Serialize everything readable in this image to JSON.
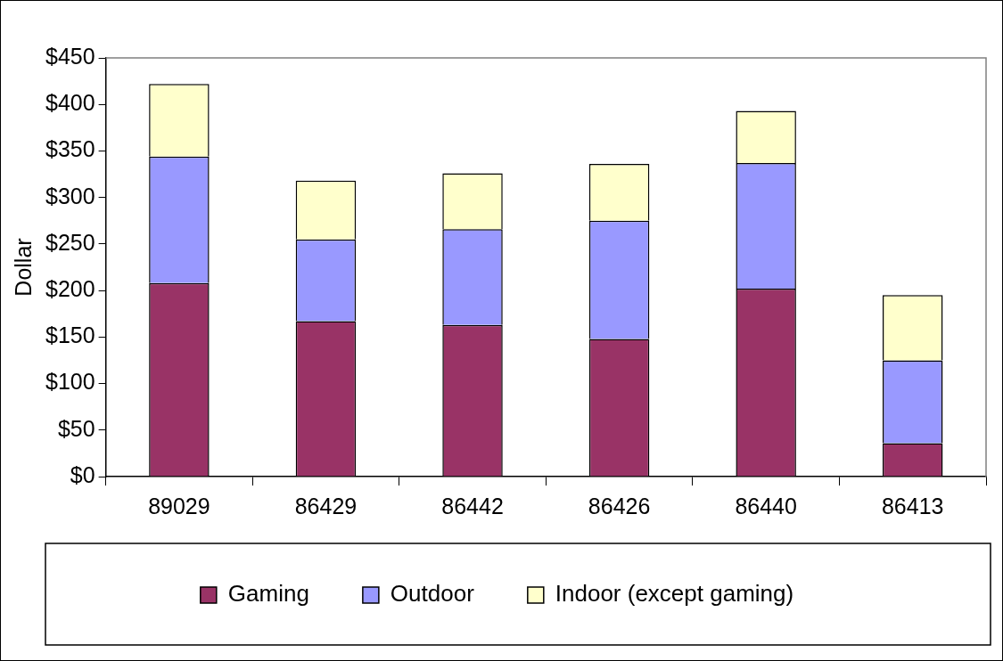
{
  "chart_data": {
    "type": "bar",
    "stacked": true,
    "ylabel": "Dollar",
    "categories": [
      "89029",
      "86429",
      "86442",
      "86426",
      "86440",
      "86413"
    ],
    "series": [
      {
        "name": "Gaming",
        "color": "#993366",
        "values": [
          208,
          167,
          163,
          148,
          202,
          36
        ]
      },
      {
        "name": "Outdoor",
        "color": "#9999ff",
        "values": [
          136,
          88,
          103,
          127,
          135,
          89
        ]
      },
      {
        "name": "Indoor (except gaming)",
        "color": "#ffffcc",
        "values": [
          78,
          63,
          60,
          61,
          56,
          70
        ]
      }
    ],
    "ylim": [
      0,
      450
    ],
    "yticks": [
      {
        "value": 0,
        "label": "$0"
      },
      {
        "value": 50,
        "label": "$50"
      },
      {
        "value": 100,
        "label": "$100"
      },
      {
        "value": 150,
        "label": "$150"
      },
      {
        "value": 200,
        "label": "$200"
      },
      {
        "value": 250,
        "label": "$250"
      },
      {
        "value": 300,
        "label": "$300"
      },
      {
        "value": 350,
        "label": "$350"
      },
      {
        "value": 400,
        "label": "$400"
      },
      {
        "value": 450,
        "label": "$450"
      }
    ],
    "grid": false,
    "legend": "bottom"
  }
}
